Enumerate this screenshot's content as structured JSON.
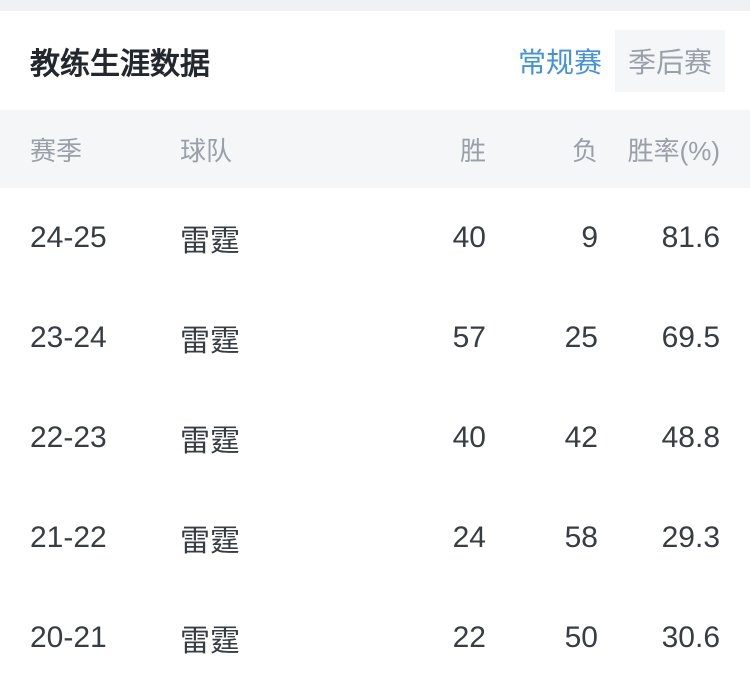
{
  "card": {
    "title": "教练生涯数据",
    "tabs": [
      {
        "label": "常规赛",
        "active": true
      },
      {
        "label": "季后赛",
        "active": false
      }
    ]
  },
  "table": {
    "columns": {
      "season": "赛季",
      "team": "球队",
      "wins": "胜",
      "losses": "负",
      "win_pct": "胜率(%)"
    },
    "rows": [
      {
        "season": "24-25",
        "team": "雷霆",
        "wins": "40",
        "losses": "9",
        "win_pct": "81.6"
      },
      {
        "season": "23-24",
        "team": "雷霆",
        "wins": "57",
        "losses": "25",
        "win_pct": "69.5"
      },
      {
        "season": "22-23",
        "team": "雷霆",
        "wins": "40",
        "losses": "42",
        "win_pct": "48.8"
      },
      {
        "season": "21-22",
        "team": "雷霆",
        "wins": "24",
        "losses": "58",
        "win_pct": "29.3"
      },
      {
        "season": "20-21",
        "team": "雷霆",
        "wins": "22",
        "losses": "50",
        "win_pct": "30.6"
      }
    ]
  },
  "colors": {
    "accent_blue": "#4392e0",
    "header_band_bg": "#f5f6f8",
    "top_strip_bg": "#eff1f4",
    "header_text": "#99a0aa",
    "row_text": "#383c43",
    "title_text": "#23272e",
    "inactive_tab_text": "#9aa0ab"
  }
}
